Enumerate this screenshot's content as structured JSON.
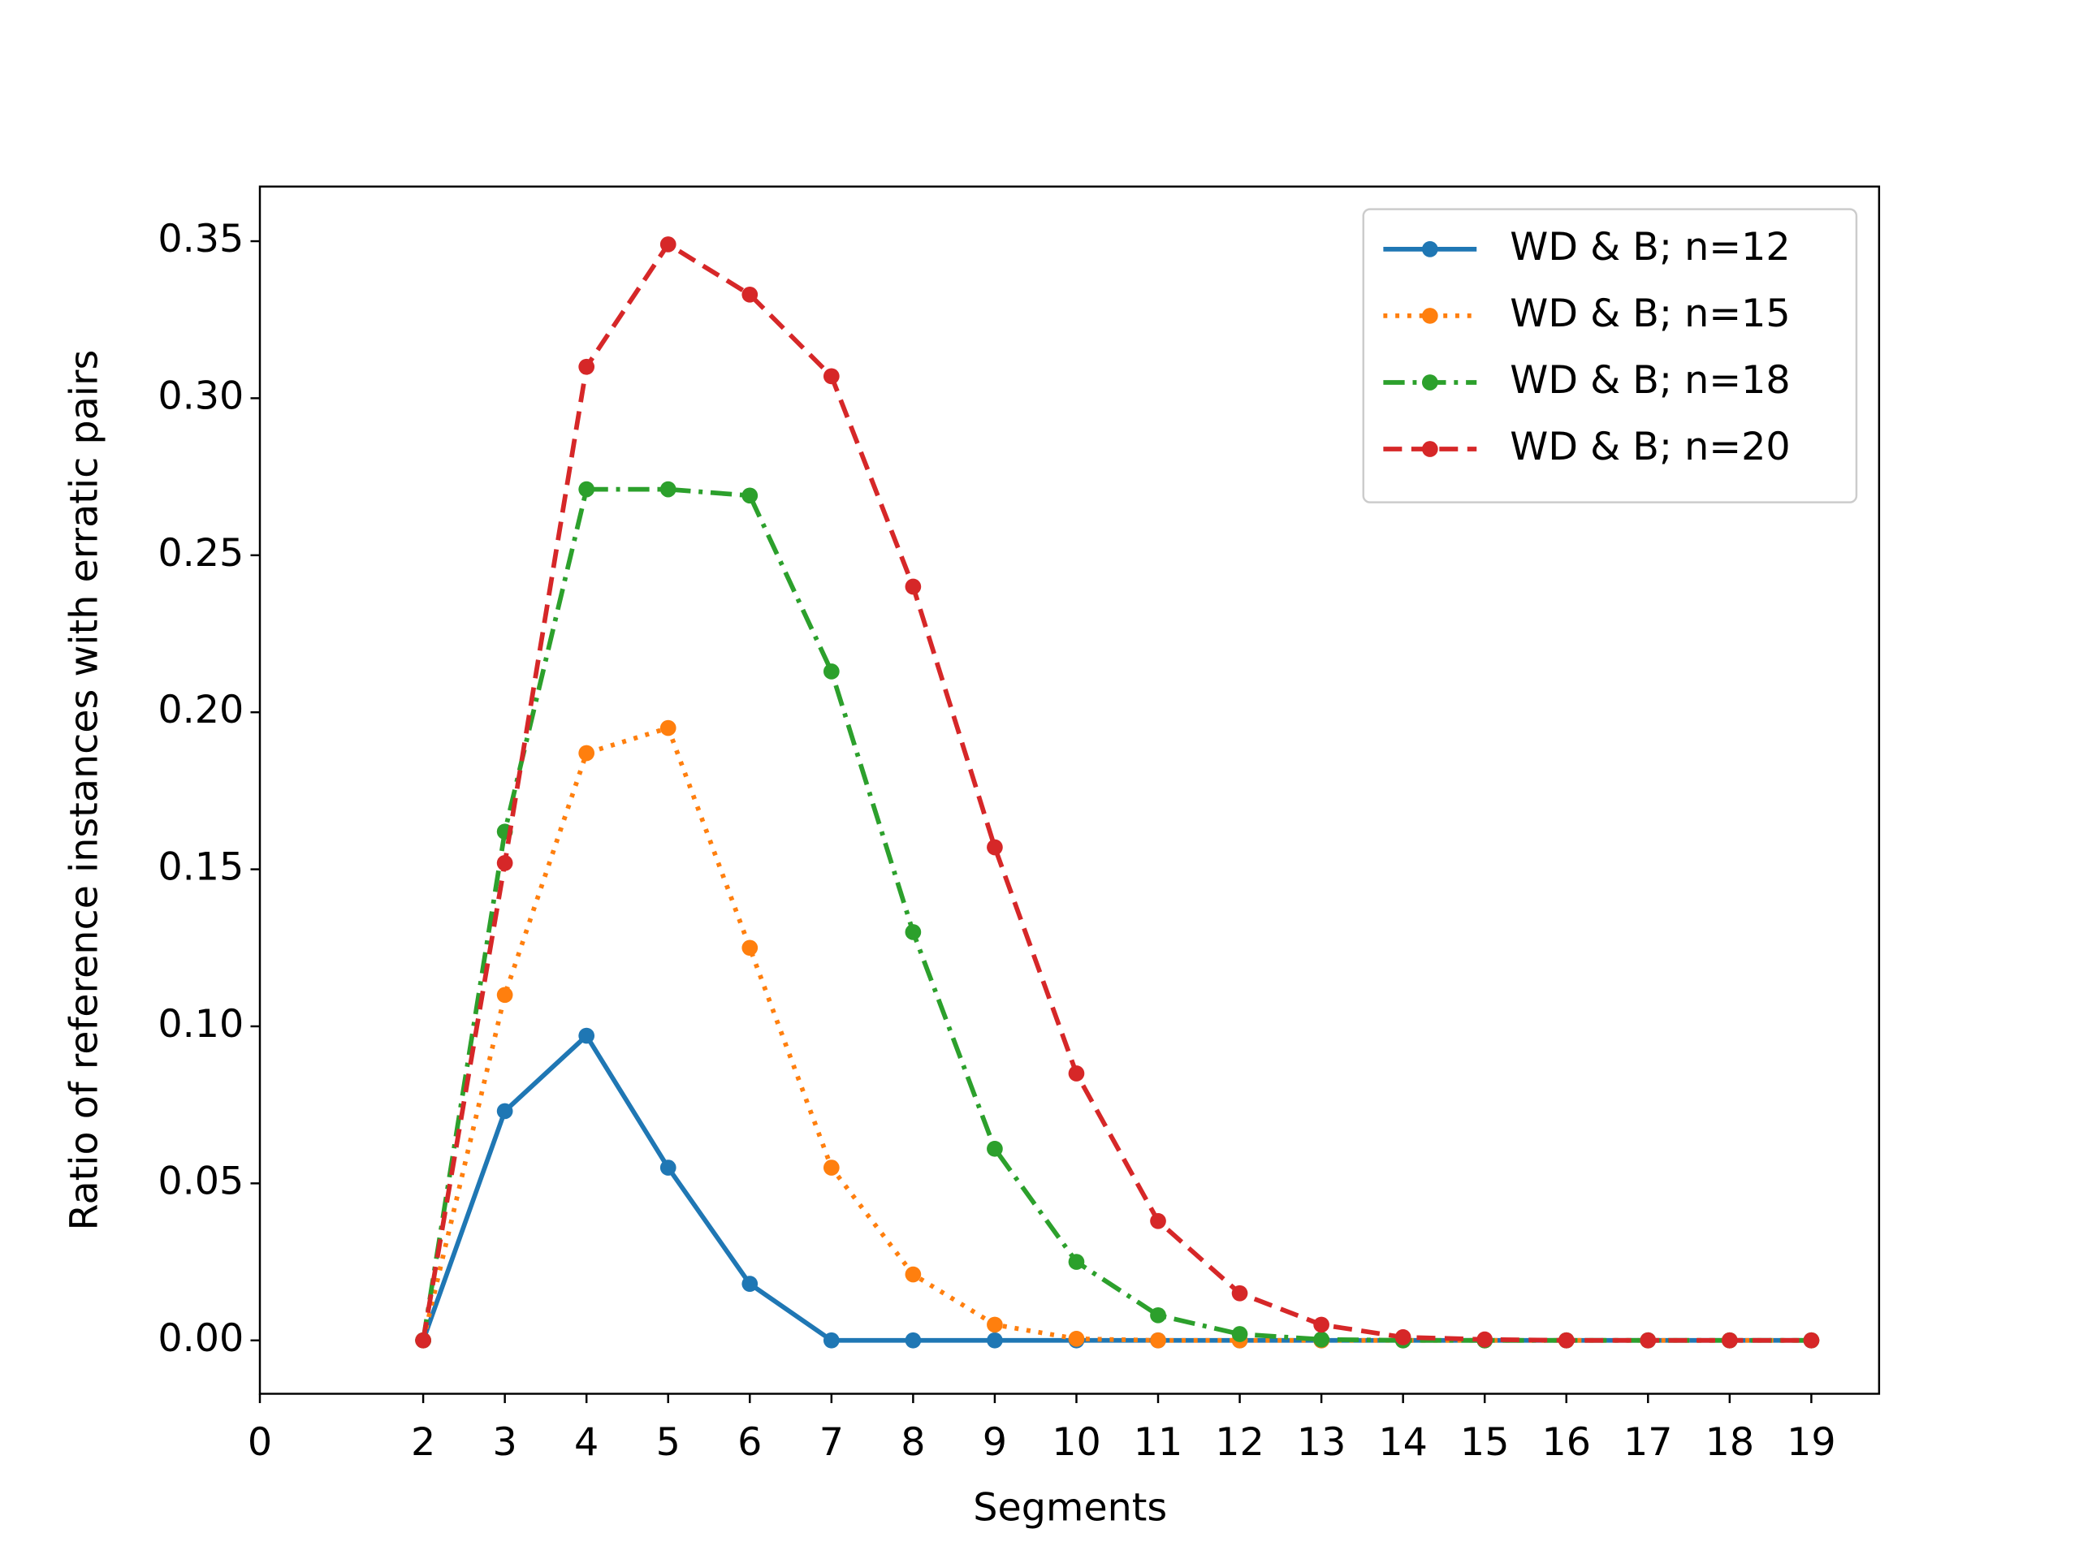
{
  "chart_data": {
    "type": "line",
    "xlabel": "Segments",
    "ylabel": "Ratio of reference instances with erratic pairs",
    "x": [
      2,
      3,
      4,
      5,
      6,
      7,
      8,
      9,
      10,
      11,
      12,
      13,
      14,
      15,
      16,
      17,
      18,
      19
    ],
    "series": [
      {
        "name": "WD & B; n=12",
        "color": "#1f77b4",
        "linestyle": "solid",
        "values": [
          0,
          0.073,
          0.097,
          0.055,
          0.018,
          0,
          0,
          0,
          0,
          0,
          0,
          0,
          0,
          0,
          0,
          0,
          0,
          0
        ]
      },
      {
        "name": "WD & B; n=15",
        "color": "#ff7f0e",
        "linestyle": "dotted",
        "values": [
          0,
          0.11,
          0.187,
          0.195,
          0.125,
          0.055,
          0.021,
          0.005,
          0.0005,
          0,
          0,
          0,
          0,
          0,
          0,
          0,
          0,
          0
        ]
      },
      {
        "name": "WD & B; n=18",
        "color": "#2ca02c",
        "linestyle": "dashdot",
        "values": [
          0,
          0.162,
          0.271,
          0.271,
          0.269,
          0.213,
          0.13,
          0.061,
          0.025,
          0.008,
          0.002,
          0.0003,
          0,
          0,
          0,
          0,
          0,
          0
        ]
      },
      {
        "name": "WD & B; n=20",
        "color": "#d62728",
        "linestyle": "dashed",
        "values": [
          0,
          0.152,
          0.31,
          0.349,
          0.333,
          0.307,
          0.24,
          0.157,
          0.085,
          0.038,
          0.015,
          0.005,
          0.001,
          0.0003,
          0,
          0,
          0,
          0
        ]
      }
    ],
    "xlim": [
      0,
      19.83
    ],
    "xticks": [
      0,
      2,
      3,
      4,
      5,
      6,
      7,
      8,
      9,
      10,
      11,
      12,
      13,
      14,
      15,
      16,
      17,
      18,
      19
    ],
    "ylim": [
      -0.017,
      0.3674
    ],
    "yticks": [
      {
        "value": 0,
        "label": "0.00"
      },
      {
        "value": 0.05,
        "label": "0.05"
      },
      {
        "value": 0.1,
        "label": "0.10"
      },
      {
        "value": 0.15,
        "label": "0.15"
      },
      {
        "value": 0.2,
        "label": "0.20"
      },
      {
        "value": 0.25,
        "label": "0.25"
      },
      {
        "value": 0.3,
        "label": "0.30"
      },
      {
        "value": 0.35,
        "label": "0.35"
      }
    ],
    "legend": "upper right",
    "grid": false
  }
}
